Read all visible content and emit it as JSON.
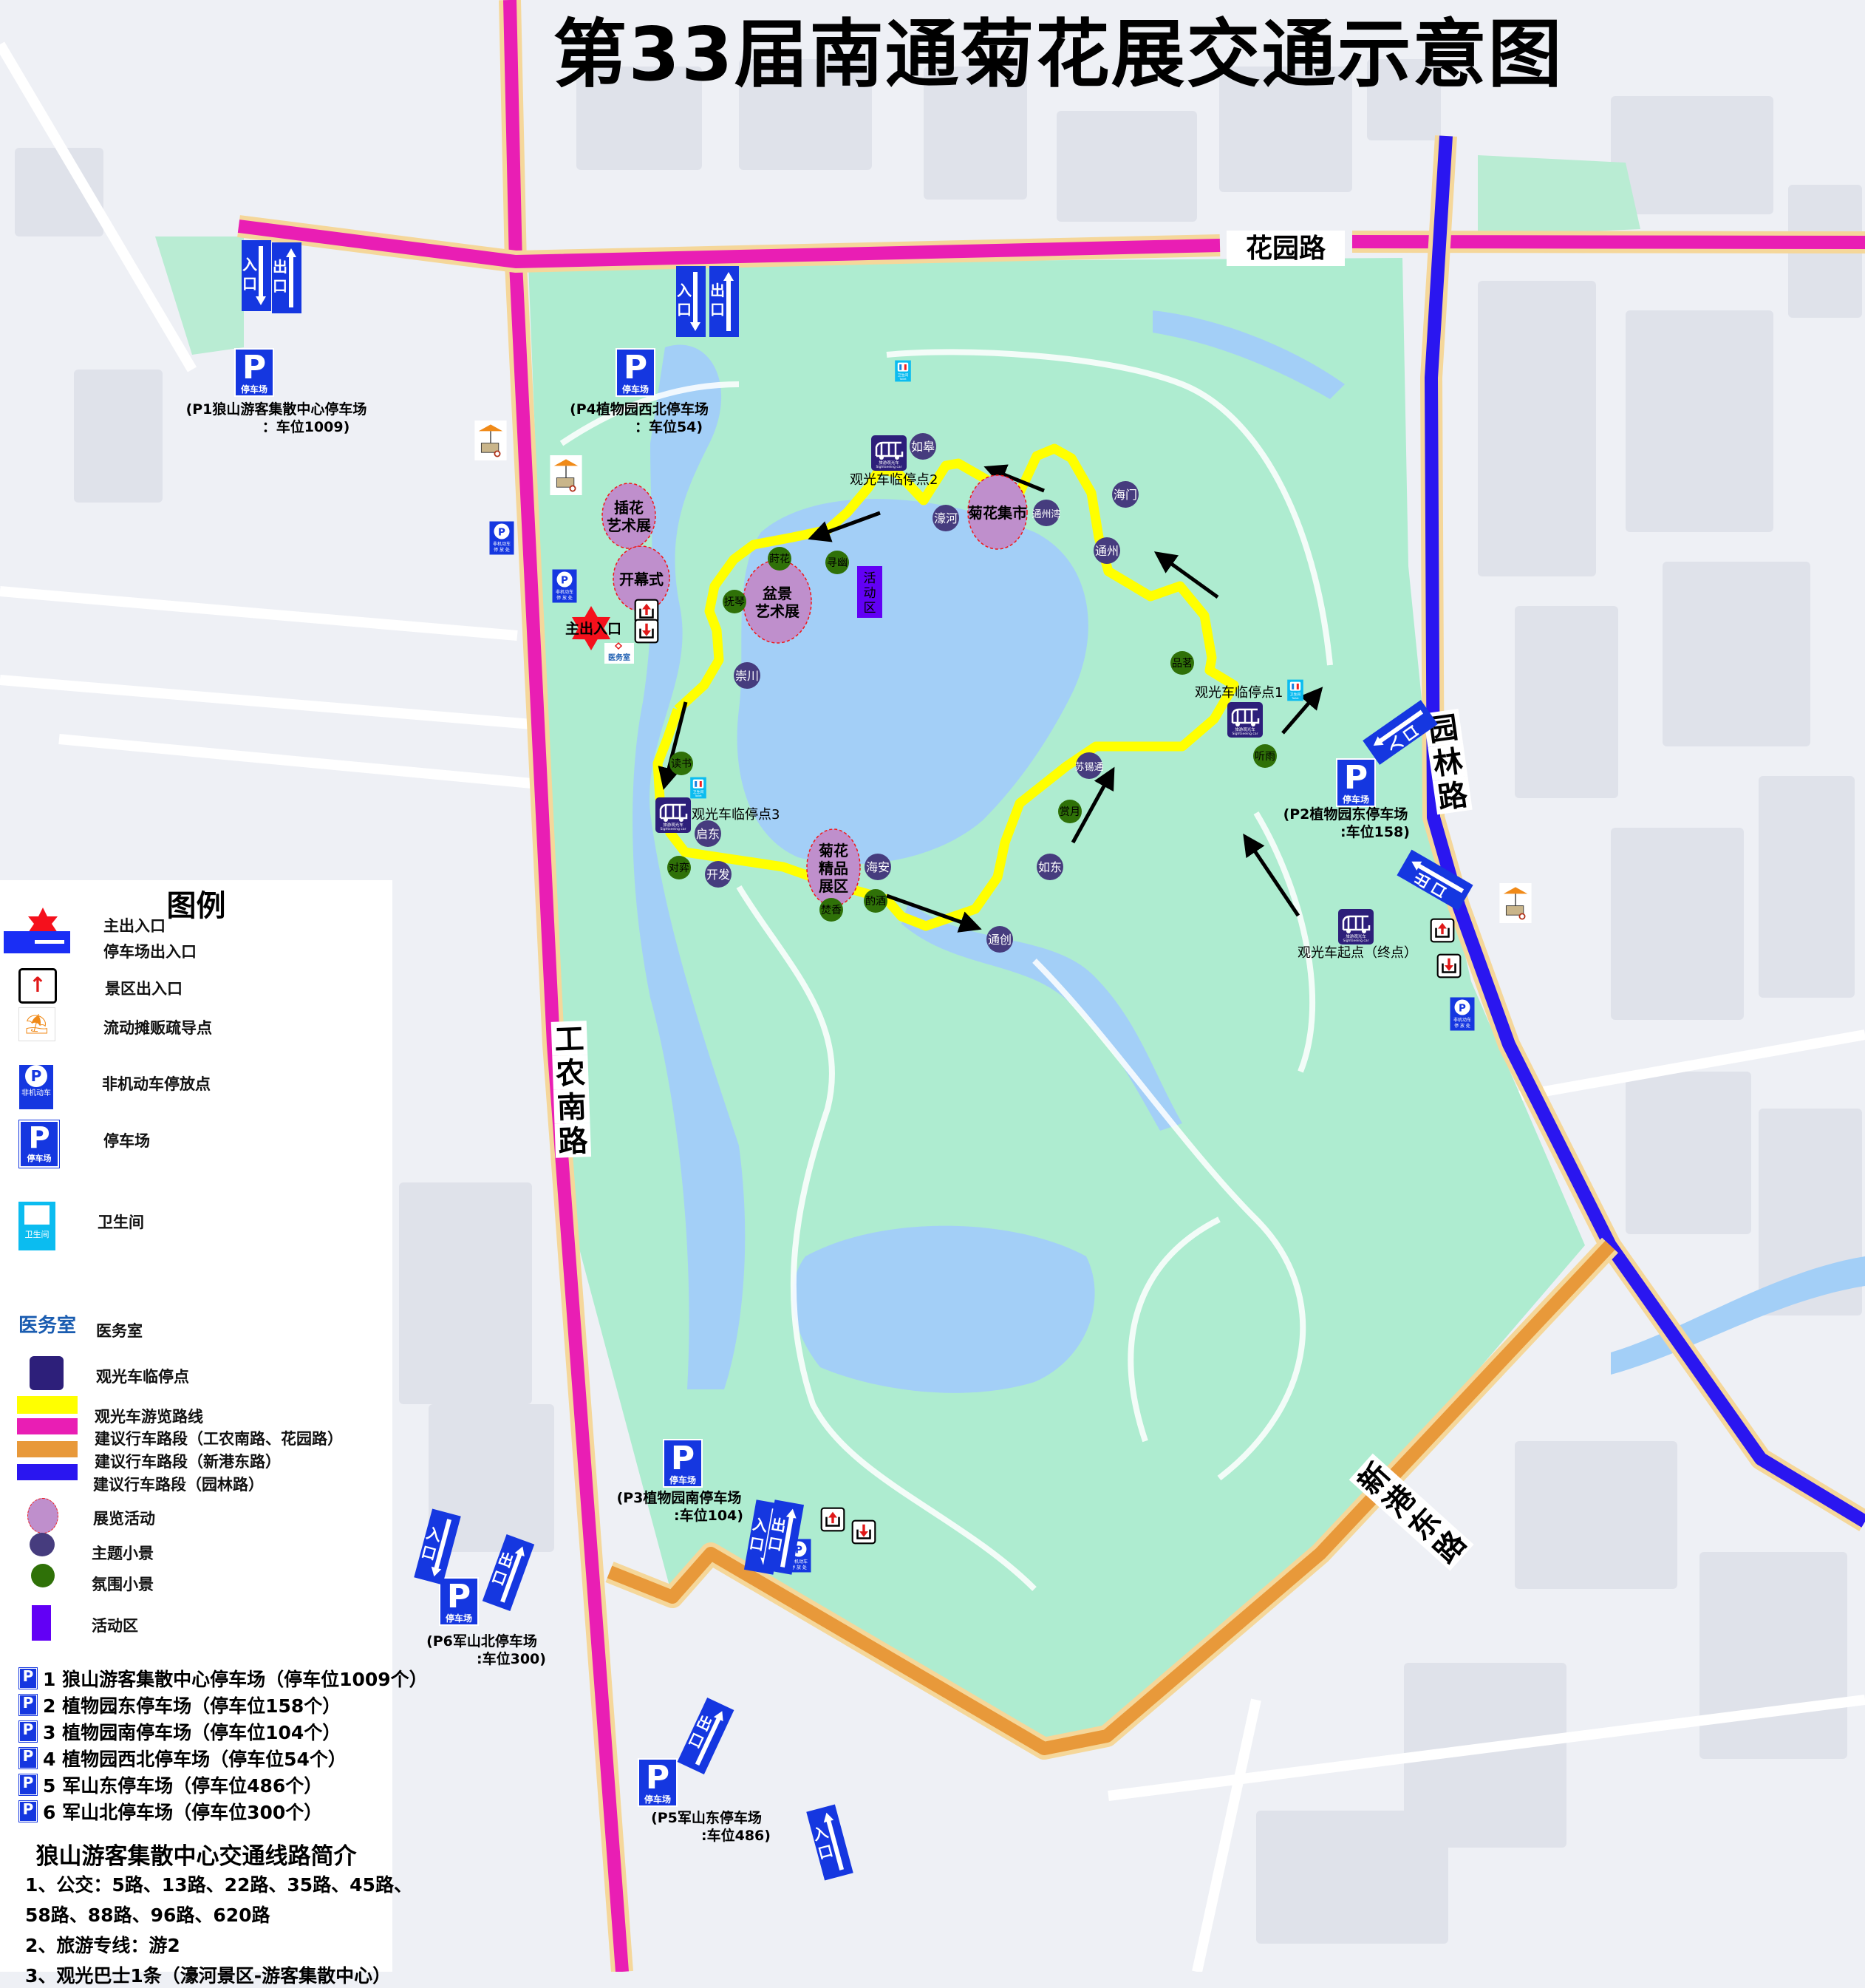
{
  "title": "第33届南通菊花展交通示意图",
  "colors": {
    "route_yellow": "#ffff00",
    "road_magenta": "#e91eb4",
    "road_orange": "#e8993a",
    "road_blue": "#2a16f0",
    "exhibition": "#bf8fcc",
    "theme_spot": "#463c7e",
    "atmosphere_spot": "#2f7108",
    "activity_area": "#6200f5",
    "park_green": "#aeecd0",
    "water": "#a3cff7"
  },
  "roads": {
    "huayuan": "花园路",
    "yuanlin": "园林路",
    "gongnong": "工农南路",
    "xingang": "新港东路"
  },
  "exhibitions": [
    {
      "lines": [
        "插花",
        "艺术展"
      ]
    },
    {
      "lines": [
        "开幕式"
      ]
    },
    {
      "lines": [
        "盆景",
        "艺术展"
      ]
    },
    {
      "lines": [
        "菊花集市"
      ]
    },
    {
      "lines": [
        "菊花",
        "精品",
        "展区"
      ]
    }
  ],
  "theme_spots": [
    "如皋",
    "濠河",
    "通州湾",
    "海门",
    "通州",
    "苏锡通",
    "崇川",
    "启东",
    "开发",
    "海安",
    "如东",
    "通创"
  ],
  "atmosphere_spots": [
    "莳花",
    "寻幽",
    "抚琴",
    "品茗",
    "听雨",
    "赏月",
    "读书",
    "对弈",
    "焚香",
    "酌酒"
  ],
  "activity_area": "活动区",
  "shuttle_stops": [
    "观光车临停点2",
    "观光车临停点1",
    "观光车临停点3",
    "观光车起点（终点）"
  ],
  "main_entrance": "主出入口",
  "medical": "医务室",
  "icon_text": {
    "parking": "停车场",
    "bike_line1": "非机动车",
    "bike_line2": "停 放 处",
    "toilet_cn": "卫生间",
    "toilet_en": "Toilet",
    "shuttle_cn": "旅游观光车",
    "shuttle_en": "Sightseeing car"
  },
  "parking": [
    {
      "id": "P1",
      "lines": [
        "(P1狼山游客集散中心停车场",
        "：车位1009)"
      ]
    },
    {
      "id": "P4",
      "lines": [
        "(P4植物园西北停车场",
        "：车位54)"
      ]
    },
    {
      "id": "P2",
      "lines": [
        "(P2植物园东停车场",
        ":车位158)"
      ]
    },
    {
      "id": "P3",
      "lines": [
        "(P3植物园南停车场",
        ":车位104)"
      ]
    },
    {
      "id": "P6",
      "lines": [
        "(P6军山北停车场",
        ":车位300)"
      ]
    },
    {
      "id": "P5",
      "lines": [
        "(P5军山东停车场",
        ":车位486)"
      ]
    }
  ],
  "gate_signs": {
    "entry": "入口",
    "exit": "出口"
  },
  "legend": {
    "title": "图例",
    "items": [
      "主出入口",
      "停车场出入口",
      "景区出入口",
      "流动摊贩疏导点",
      "非机动车停放点",
      "停车场",
      "卫生间",
      "医务室",
      "观光车临停点",
      "观光车游览路线",
      "建议行车路段（工农南路、花园路）",
      "建议行车路段（新港东路）",
      "建议行车路段（园林路）",
      "展览活动",
      "主题小景",
      "氛围小景",
      "活动区"
    ]
  },
  "parking_list": [
    "1 狼山游客集散中心停车场（停车位1009个）",
    "2 植物园东停车场（停车位158个）",
    "3 植物园南停车场（停车位104个）",
    "4 植物园西北停车场（停车位54个）",
    "5 军山东停车场（停车位486个）",
    "6 军山北停车场（停车位300个）"
  ],
  "transit": {
    "title": "狼山游客集散中心交通线路简介",
    "lines": [
      "1、公交：5路、13路、22路、35路、45路、",
      "58路、88路、96路、620路",
      "2、旅游专线：游2",
      "3、观光巴士1条（濠河景区-游客集散中心）"
    ]
  }
}
